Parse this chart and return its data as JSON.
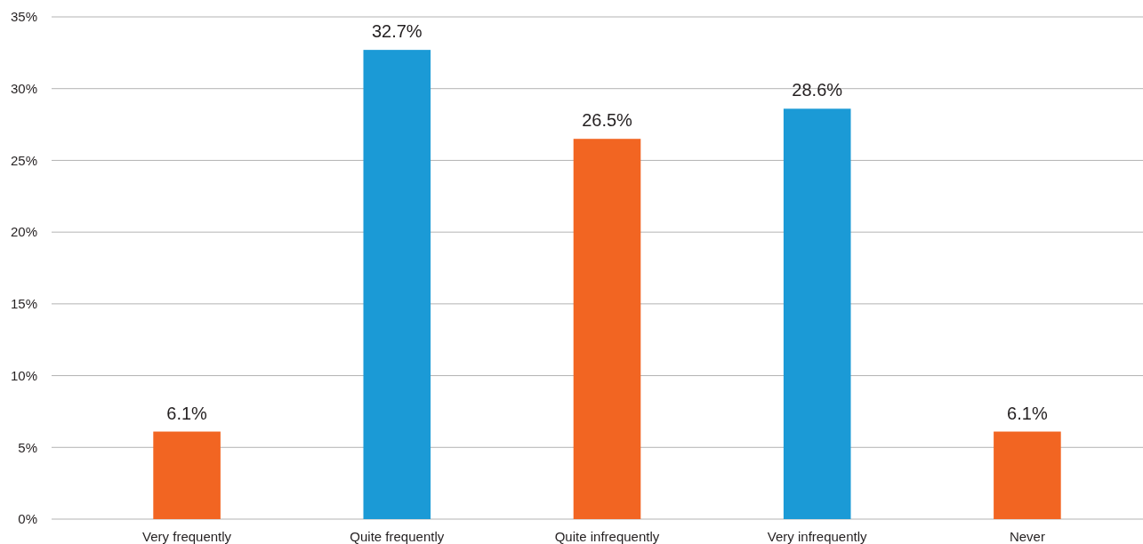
{
  "chart_data": {
    "type": "bar",
    "categories": [
      "Very frequently",
      "Quite frequently",
      "Quite infrequently",
      "Very infrequently",
      "Never"
    ],
    "values": [
      6.1,
      32.7,
      26.5,
      28.6,
      6.1
    ],
    "colors": [
      "#f26522",
      "#1b9ad6",
      "#f26522",
      "#1b9ad6",
      "#f26522"
    ],
    "value_labels": [
      "6.1%",
      "32.7%",
      "26.5%",
      "28.6%",
      "6.1%"
    ],
    "ylim": [
      0,
      35
    ],
    "yticks": [
      {
        "value": 0,
        "label": "0%"
      },
      {
        "value": 5,
        "label": "5%"
      },
      {
        "value": 10,
        "label": "10%"
      },
      {
        "value": 15,
        "label": "15%"
      },
      {
        "value": 20,
        "label": "20%"
      },
      {
        "value": 25,
        "label": "25%"
      },
      {
        "value": 30,
        "label": "30%"
      },
      {
        "value": 35,
        "label": "35%"
      }
    ],
    "grid": "y"
  }
}
